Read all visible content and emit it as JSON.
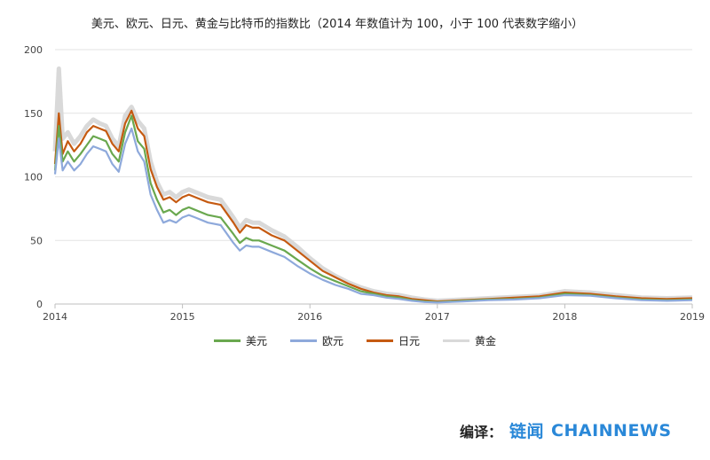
{
  "title": "美元、欧元、日元、黄金与比特币的指数比（2014 年数值计为 100，小于 100 代表数字缩小）",
  "chart_data": {
    "type": "line",
    "title": "美元、欧元、日元、黄金与比特币的指数比（2014 年数值计为 100，小于 100 代表数字缩小）",
    "xlabel": "",
    "ylabel": "",
    "ylim": [
      0,
      200
    ],
    "yticks": [
      0,
      50,
      100,
      150,
      200
    ],
    "xlim": [
      2014.0,
      2019.0
    ],
    "xticks": [
      "2014",
      "2015",
      "2016",
      "2017",
      "2018",
      "2019"
    ],
    "grid": "horizontal",
    "legend_position": "bottom",
    "x": [
      2014.0,
      2014.03,
      2014.06,
      2014.1,
      2014.15,
      2014.2,
      2014.25,
      2014.3,
      2014.35,
      2014.4,
      2014.45,
      2014.5,
      2014.55,
      2014.6,
      2014.65,
      2014.7,
      2014.75,
      2014.8,
      2014.85,
      2014.9,
      2014.95,
      2015.0,
      2015.05,
      2015.1,
      2015.2,
      2015.3,
      2015.4,
      2015.45,
      2015.5,
      2015.55,
      2015.6,
      2015.7,
      2015.8,
      2015.9,
      2016.0,
      2016.1,
      2016.2,
      2016.3,
      2016.4,
      2016.5,
      2016.6,
      2016.7,
      2016.8,
      2016.9,
      2017.0,
      2017.2,
      2017.4,
      2017.6,
      2017.8,
      2018.0,
      2018.2,
      2018.4,
      2018.6,
      2018.8,
      2019.0
    ],
    "series": [
      {
        "name": "美元",
        "color": "#6aa84f",
        "values": [
          105,
          140,
          112,
          120,
          112,
          118,
          125,
          132,
          130,
          128,
          118,
          112,
          135,
          148,
          128,
          122,
          95,
          82,
          72,
          74,
          70,
          74,
          76,
          74,
          70,
          68,
          55,
          48,
          52,
          50,
          50,
          46,
          42,
          35,
          28,
          22,
          18,
          14,
          10,
          8,
          6,
          5,
          3,
          2,
          1.5,
          2.5,
          3.5,
          4,
          5,
          8,
          7,
          5,
          3.5,
          3,
          3.5
        ]
      },
      {
        "name": "欧元",
        "color": "#8ea9db",
        "values": [
          102,
          130,
          105,
          112,
          105,
          110,
          118,
          124,
          122,
          120,
          110,
          104,
          126,
          138,
          120,
          112,
          86,
          74,
          64,
          66,
          64,
          68,
          70,
          68,
          64,
          62,
          48,
          42,
          46,
          45,
          45,
          41,
          37,
          30,
          24,
          19,
          15,
          12,
          8,
          7,
          5,
          4,
          2.5,
          1.5,
          1.2,
          2,
          3,
          3.5,
          4.5,
          7,
          6.5,
          4.5,
          3,
          2.5,
          3
        ]
      },
      {
        "name": "日元",
        "color": "#c55a11",
        "values": [
          110,
          150,
          118,
          128,
          120,
          126,
          135,
          140,
          138,
          136,
          126,
          120,
          142,
          152,
          138,
          132,
          106,
          92,
          82,
          84,
          80,
          84,
          86,
          84,
          80,
          78,
          64,
          56,
          62,
          60,
          60,
          54,
          50,
          42,
          34,
          26,
          21,
          16,
          12,
          9,
          7,
          6,
          4,
          3,
          2,
          3,
          4,
          5,
          6,
          9,
          8,
          6,
          4.5,
          4,
          4.5
        ]
      },
      {
        "name": "黄金",
        "color": "#d9d9d9",
        "values": [
          120,
          185,
          130,
          135,
          126,
          132,
          140,
          145,
          142,
          140,
          130,
          124,
          148,
          155,
          144,
          138,
          112,
          96,
          86,
          88,
          84,
          88,
          90,
          88,
          84,
          82,
          68,
          60,
          66,
          64,
          64,
          58,
          53,
          45,
          36,
          28,
          22,
          17,
          13,
          10,
          8,
          7,
          5,
          3.5,
          2.5,
          3.5,
          4.5,
          5.5,
          6.5,
          10,
          9,
          7,
          5,
          4.5,
          5
        ]
      }
    ]
  },
  "credit": {
    "label": "编译：",
    "brand_cn": "链闻",
    "brand_en": "CHAINNEWS"
  }
}
